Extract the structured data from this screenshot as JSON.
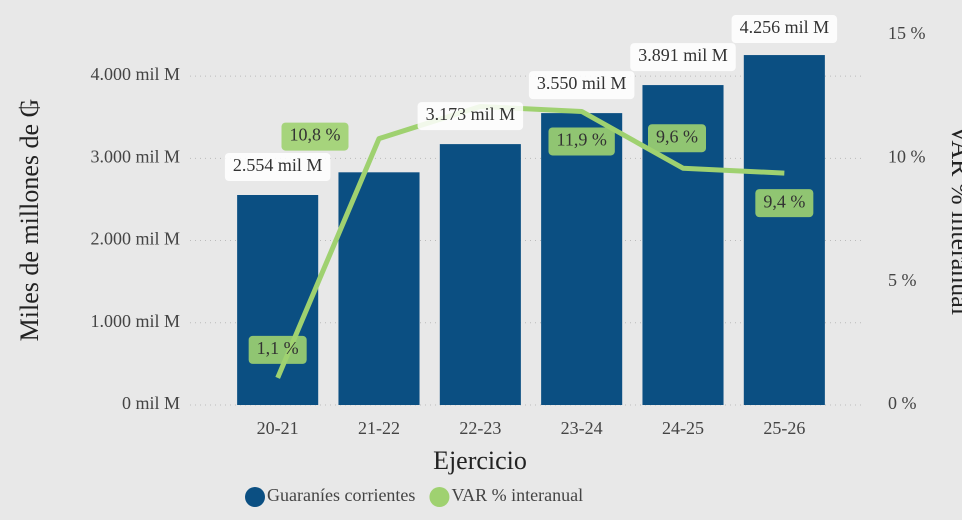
{
  "chart_data": {
    "type": "bar-line",
    "categories": [
      "20-21",
      "21-22",
      "22-23",
      "23-24",
      "24-25",
      "25-26"
    ],
    "x_label": "Ejercicio",
    "y_label": "Miles de millones de ₲",
    "y2_label": "VAR % interanual",
    "series": [
      {
        "name": "Guaraníes corrientes",
        "type": "bar",
        "color": "#0b4f82",
        "values": [
          2554,
          2830,
          3173,
          3550,
          3891,
          4256
        ],
        "value_labels": [
          "2.554 mil M",
          null,
          "3.173 mil M",
          "3.550 mil M",
          "3.891 mil M",
          "4.256 mil M"
        ]
      },
      {
        "name": "VAR % interanual",
        "type": "line",
        "axis": "y2",
        "color": "#9fd170",
        "values": [
          1.1,
          10.8,
          12.1,
          11.9,
          9.6,
          9.4
        ],
        "value_labels": [
          "1,1 %",
          "10,8 %",
          null,
          "11,9 %",
          "9,6 %",
          "9,4 %"
        ]
      }
    ],
    "ylim": [
      0,
      4500
    ],
    "yticks": [
      {
        "value": 0,
        "label": "0 mil M"
      },
      {
        "value": 1000,
        "label": "1.000 mil M"
      },
      {
        "value": 2000,
        "label": "2.000 mil M"
      },
      {
        "value": 3000,
        "label": "3.000 mil M"
      },
      {
        "value": 4000,
        "label": "4.000 mil M"
      }
    ],
    "y2lim": [
      0,
      15
    ],
    "y2ticks": [
      {
        "value": 0,
        "label": "0 %"
      },
      {
        "value": 5,
        "label": "5 %"
      },
      {
        "value": 10,
        "label": "10 %"
      },
      {
        "value": 15,
        "label": "15 %"
      }
    ],
    "grid": true,
    "legend": "bottom"
  }
}
